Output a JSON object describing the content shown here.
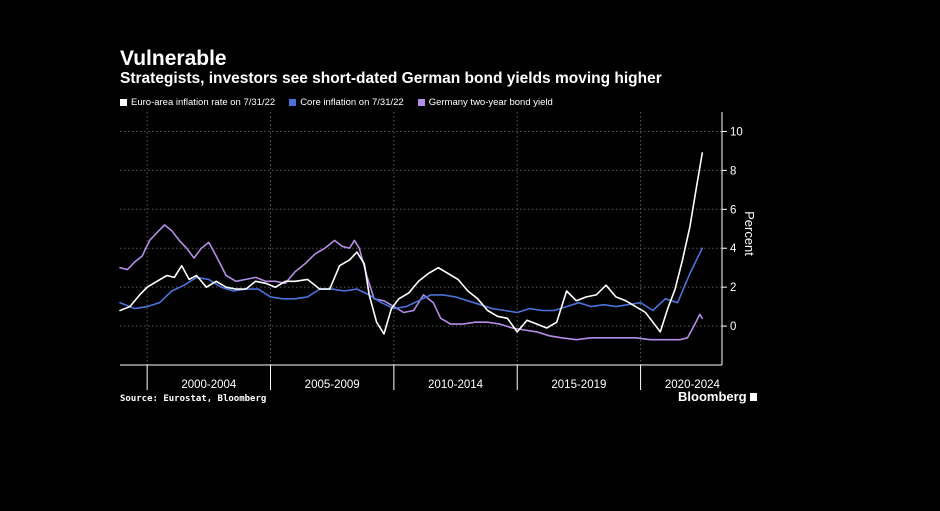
{
  "header": {
    "title": "Vulnerable",
    "subtitle": "Strategists, investors see short-dated German bond yields moving higher"
  },
  "footer": {
    "source": "Source: Eurostat, Bloomberg",
    "brand": "Bloomberg"
  },
  "chart_data": {
    "type": "line",
    "ylabel": "Percent",
    "ylim": [
      -2,
      11
    ],
    "xlim": [
      1998.9,
      2023.3
    ],
    "yticks": [
      0,
      2,
      4,
      6,
      8,
      10
    ],
    "period_labels": [
      "2000-2004",
      "2005-2009",
      "2010-2014",
      "2015-2019",
      "2020-2024"
    ],
    "period_centers": [
      2002.5,
      2007.5,
      2012.5,
      2017.5,
      2022.1
    ],
    "period_boundaries": [
      2000,
      2005,
      2010,
      2015,
      2020
    ],
    "grid": true,
    "legend_position": "top-left",
    "series": [
      {
        "name": "Euro-area inflation rate on 7/31/22",
        "color": "#ffffff",
        "x": [
          1998.9,
          1999.3,
          1999.7,
          2000.0,
          2000.4,
          2000.8,
          2001.1,
          2001.4,
          2001.7,
          2002.0,
          2002.4,
          2002.8,
          2003.2,
          2003.6,
          2004.0,
          2004.4,
          2004.8,
          2005.2,
          2005.6,
          2006.0,
          2006.5,
          2007.0,
          2007.4,
          2007.8,
          2008.2,
          2008.5,
          2008.8,
          2009.0,
          2009.3,
          2009.6,
          2009.9,
          2010.2,
          2010.6,
          2011.0,
          2011.4,
          2011.8,
          2012.2,
          2012.6,
          2013.0,
          2013.4,
          2013.8,
          2014.2,
          2014.6,
          2015.0,
          2015.4,
          2015.8,
          2016.2,
          2016.6,
          2017.0,
          2017.4,
          2017.8,
          2018.2,
          2018.6,
          2019.0,
          2019.4,
          2019.8,
          2020.2,
          2020.5,
          2020.8,
          2021.1,
          2021.4,
          2021.7,
          2022.0,
          2022.3,
          2022.5
        ],
        "values": [
          0.8,
          1.0,
          1.6,
          2.0,
          2.3,
          2.6,
          2.5,
          3.1,
          2.4,
          2.6,
          2.0,
          2.3,
          2.0,
          1.9,
          1.9,
          2.3,
          2.2,
          2.0,
          2.3,
          2.3,
          2.4,
          1.9,
          1.9,
          3.1,
          3.4,
          3.8,
          3.2,
          1.6,
          0.2,
          -0.4,
          0.9,
          1.4,
          1.7,
          2.3,
          2.7,
          3.0,
          2.7,
          2.4,
          1.8,
          1.4,
          0.8,
          0.5,
          0.4,
          -0.3,
          0.3,
          0.1,
          -0.1,
          0.2,
          1.8,
          1.3,
          1.5,
          1.6,
          2.1,
          1.5,
          1.3,
          1.0,
          0.7,
          0.2,
          -0.3,
          0.9,
          1.9,
          3.4,
          5.1,
          7.4,
          8.9
        ]
      },
      {
        "name": "Core inflation on 7/31/22",
        "color": "#4a72d9",
        "x": [
          1998.9,
          1999.5,
          2000.0,
          2000.5,
          2001.0,
          2001.5,
          2002.0,
          2002.5,
          2003.0,
          2003.5,
          2004.0,
          2004.5,
          2005.0,
          2005.5,
          2006.0,
          2006.5,
          2007.0,
          2007.5,
          2008.0,
          2008.5,
          2009.0,
          2009.5,
          2010.0,
          2010.5,
          2011.0,
          2011.5,
          2012.0,
          2012.5,
          2013.0,
          2013.5,
          2014.0,
          2014.5,
          2015.0,
          2015.5,
          2016.0,
          2016.5,
          2017.0,
          2017.5,
          2018.0,
          2018.5,
          2019.0,
          2019.5,
          2020.0,
          2020.5,
          2021.0,
          2021.5,
          2022.0,
          2022.5
        ],
        "values": [
          1.2,
          0.9,
          1.0,
          1.2,
          1.8,
          2.1,
          2.5,
          2.4,
          2.0,
          1.8,
          1.9,
          1.9,
          1.5,
          1.4,
          1.4,
          1.5,
          1.9,
          1.9,
          1.8,
          1.9,
          1.6,
          1.2,
          0.9,
          1.0,
          1.3,
          1.6,
          1.6,
          1.5,
          1.3,
          1.1,
          0.9,
          0.8,
          0.7,
          0.9,
          0.8,
          0.8,
          1.0,
          1.2,
          1.0,
          1.1,
          1.0,
          1.1,
          1.2,
          0.8,
          1.4,
          1.2,
          2.7,
          4.0
        ]
      },
      {
        "name": "Germany two-year bond yield",
        "color": "#b38de6",
        "x": [
          1998.9,
          1999.2,
          1999.5,
          1999.8,
          2000.1,
          2000.4,
          2000.7,
          2001.0,
          2001.3,
          2001.6,
          2001.9,
          2002.2,
          2002.5,
          2002.8,
          2003.2,
          2003.6,
          2004.0,
          2004.4,
          2004.8,
          2005.2,
          2005.6,
          2006.0,
          2006.4,
          2006.8,
          2007.2,
          2007.6,
          2007.9,
          2008.2,
          2008.4,
          2008.6,
          2008.9,
          2009.2,
          2009.6,
          2010.0,
          2010.4,
          2010.8,
          2011.2,
          2011.6,
          2011.9,
          2012.3,
          2012.8,
          2013.3,
          2013.8,
          2014.3,
          2014.8,
          2015.3,
          2015.8,
          2016.3,
          2016.8,
          2017.4,
          2018.0,
          2018.6,
          2019.2,
          2019.8,
          2020.4,
          2021.0,
          2021.6,
          2021.9,
          2022.2,
          2022.4,
          2022.5
        ],
        "values": [
          3.0,
          2.9,
          3.3,
          3.6,
          4.4,
          4.8,
          5.2,
          4.9,
          4.4,
          4.0,
          3.5,
          4.0,
          4.3,
          3.6,
          2.6,
          2.3,
          2.4,
          2.5,
          2.3,
          2.3,
          2.2,
          2.8,
          3.2,
          3.7,
          4.0,
          4.4,
          4.1,
          4.0,
          4.4,
          4.0,
          2.6,
          1.4,
          1.3,
          1.0,
          0.7,
          0.8,
          1.6,
          1.2,
          0.4,
          0.1,
          0.1,
          0.2,
          0.2,
          0.1,
          -0.1,
          -0.2,
          -0.3,
          -0.5,
          -0.6,
          -0.7,
          -0.6,
          -0.6,
          -0.6,
          -0.6,
          -0.7,
          -0.7,
          -0.7,
          -0.6,
          0.1,
          0.6,
          0.4
        ]
      }
    ]
  }
}
